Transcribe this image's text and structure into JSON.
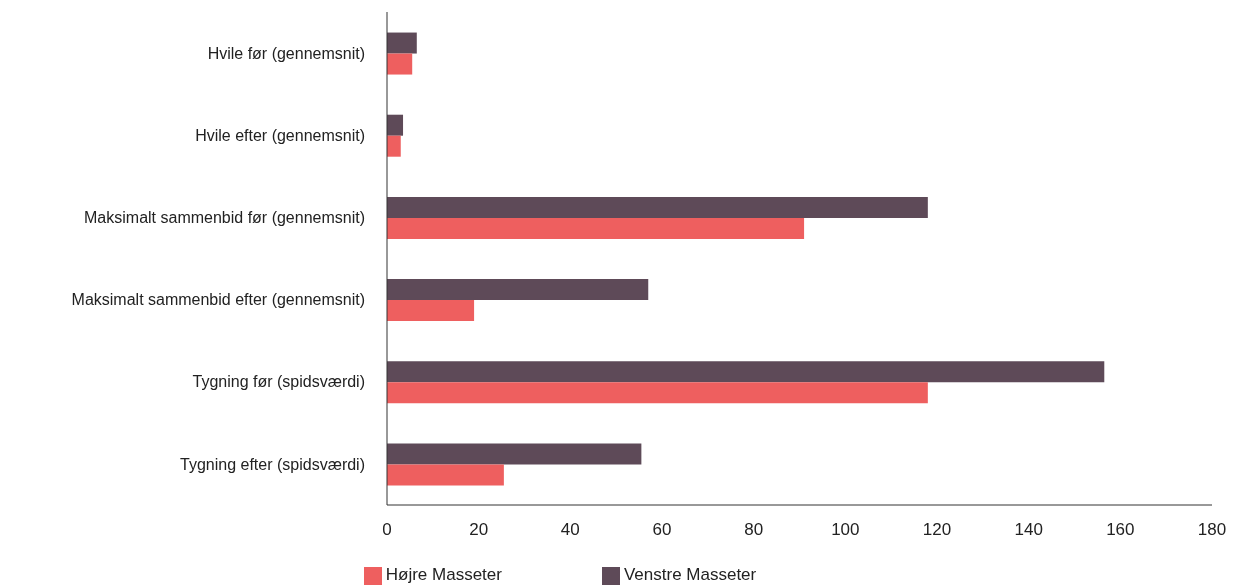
{
  "chart_data": {
    "type": "bar",
    "orientation": "horizontal",
    "categories": [
      "Hvile før (gennemsnit)",
      "Hvile efter (gennemsnit)",
      "Maksimalt sammenbid før (gennemsnit)",
      "Maksimalt sammenbid efter (gennemsnit)",
      "Tygning før (spidsværdi)",
      "Tygning efter (spidsværdi)"
    ],
    "series": [
      {
        "name": "Venstre Masseter",
        "color": "#5e4a58",
        "values": [
          6.5,
          3.5,
          118,
          57,
          156.5,
          55.5
        ]
      },
      {
        "name": "Højre Masseter",
        "color": "#ee5f5f",
        "values": [
          5.5,
          3,
          91,
          19,
          118,
          25.5
        ]
      }
    ],
    "xlim": [
      0,
      180
    ],
    "xticks": [
      0,
      20,
      40,
      60,
      80,
      100,
      120,
      140,
      160,
      180
    ],
    "grid": false,
    "legend": "bottom"
  }
}
